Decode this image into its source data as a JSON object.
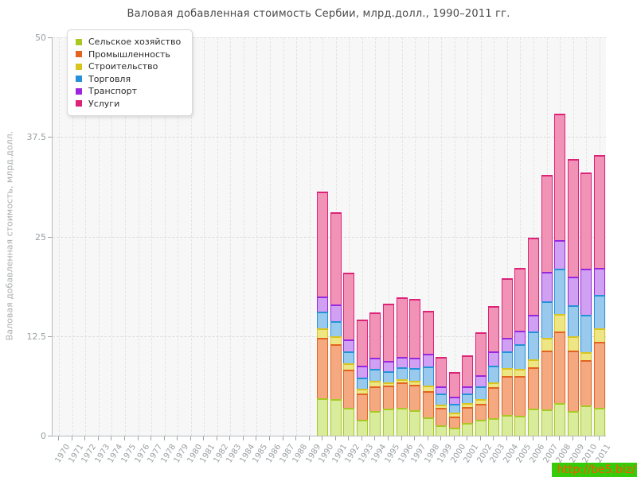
{
  "watermark": {
    "text": "http://be5.biz/",
    "bg_color": "#35cc0a",
    "text_color": "#ff5400"
  },
  "chart_data": {
    "type": "bar",
    "stacked": true,
    "title": "Валовая добавленная стоимость Сербии, млрд.долл., 1990–2011 гг.",
    "xlabel": "",
    "ylabel": "Валовая добавленная стоимость, млрд.долл.",
    "ylim": [
      0,
      50
    ],
    "y_ticks": [
      "0",
      "12.5",
      "25",
      "37.5",
      "50"
    ],
    "grid": "dashed",
    "legend_position": "top-left",
    "x_years": [
      "1970",
      "1971",
      "1972",
      "1973",
      "1974",
      "1975",
      "1976",
      "1977",
      "1978",
      "1979",
      "1980",
      "1981",
      "1982",
      "1983",
      "1984",
      "1985",
      "1986",
      "1987",
      "1988",
      "1989",
      "1990",
      "1991",
      "1992",
      "1993",
      "1994",
      "1995",
      "1996",
      "1997",
      "1998",
      "1999",
      "2000",
      "2001",
      "2002",
      "2003",
      "2004",
      "2005",
      "2006",
      "2007",
      "2008",
      "2009",
      "2010",
      "2011"
    ],
    "categories": [
      "1990",
      "1991",
      "1992",
      "1993",
      "1994",
      "1995",
      "1996",
      "1997",
      "1998",
      "1999",
      "2000",
      "2001",
      "2002",
      "2003",
      "2004",
      "2005",
      "2006",
      "2007",
      "2008",
      "2009",
      "2010",
      "2011"
    ],
    "series": [
      {
        "name": "Сельское хозяйство",
        "color": "#a9c822",
        "fill": "#d9ec9b",
        "values": [
          4.7,
          4.6,
          3.5,
          2.0,
          3.1,
          3.4,
          3.5,
          3.2,
          2.3,
          1.3,
          1.0,
          1.6,
          2.0,
          2.2,
          2.6,
          2.5,
          3.4,
          3.3,
          4.1,
          3.1,
          3.8,
          3.5
        ]
      },
      {
        "name": "Промышленность",
        "color": "#e2641e",
        "fill": "#f4a981",
        "values": [
          7.6,
          6.9,
          4.8,
          3.3,
          3.1,
          2.9,
          3.2,
          3.2,
          3.3,
          2.2,
          1.4,
          2.0,
          2.0,
          3.9,
          4.9,
          5.0,
          5.2,
          7.4,
          9.0,
          7.6,
          5.7,
          8.3
        ]
      },
      {
        "name": "Строительство",
        "color": "#d9c41e",
        "fill": "#eee584",
        "values": [
          1.2,
          1.0,
          0.8,
          0.6,
          0.7,
          0.4,
          0.4,
          0.5,
          0.7,
          0.4,
          0.5,
          0.5,
          0.6,
          0.6,
          1.0,
          0.9,
          1.0,
          1.6,
          2.2,
          1.8,
          1.0,
          1.7
        ]
      },
      {
        "name": "Торговля",
        "color": "#2691d9",
        "fill": "#9ac9ee",
        "values": [
          2.1,
          1.9,
          1.5,
          1.4,
          1.5,
          1.4,
          1.5,
          1.6,
          2.4,
          1.4,
          1.1,
          1.2,
          1.6,
          2.1,
          2.1,
          3.1,
          3.5,
          4.6,
          5.7,
          3.9,
          4.7,
          4.2
        ]
      },
      {
        "name": "Транспорт",
        "color": "#9a27dd",
        "fill": "#d0a0f2",
        "values": [
          1.9,
          2.1,
          1.5,
          1.5,
          1.4,
          1.3,
          1.3,
          1.3,
          1.6,
          0.9,
          0.9,
          0.9,
          1.4,
          1.8,
          1.7,
          1.7,
          2.1,
          3.7,
          3.6,
          3.6,
          5.8,
          3.4
        ]
      },
      {
        "name": "Услуги",
        "color": "#dd2277",
        "fill": "#f193b7",
        "values": [
          13.1,
          11.5,
          8.4,
          5.8,
          5.7,
          7.2,
          7.5,
          7.4,
          5.4,
          3.7,
          3.1,
          3.9,
          5.4,
          5.7,
          7.5,
          7.9,
          9.7,
          12.1,
          15.8,
          14.7,
          12.0,
          14.1
        ]
      }
    ]
  }
}
